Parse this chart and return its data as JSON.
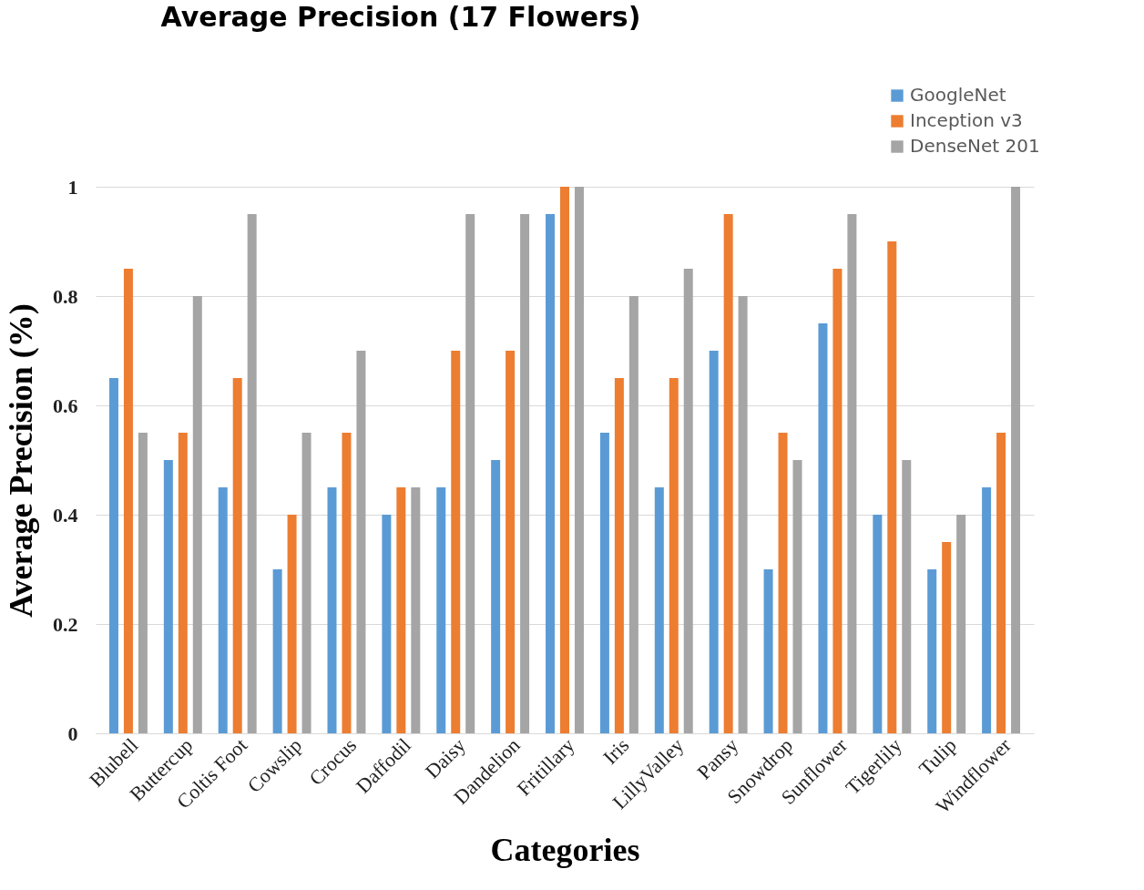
{
  "chart_data": {
    "type": "bar",
    "title": "Average Precision (17 Flowers)",
    "xlabel": "Categories",
    "ylabel": "Average Precision (%)",
    "categories": [
      "Blubell",
      "Buttercup",
      "Coltis Foot",
      "Cowslip",
      "Crocus",
      "Daffodil",
      "Daisy",
      "Dandelion",
      "Fritillary",
      "Iris",
      "LillyValley",
      "Pansy",
      "Snowdrop",
      "Sunflower",
      "Tigerlily",
      "Tulip",
      "Windflower"
    ],
    "series": [
      {
        "name": "GoogleNet",
        "color": "#5b9bd5",
        "values": [
          0.65,
          0.5,
          0.45,
          0.3,
          0.45,
          0.4,
          0.45,
          0.5,
          0.95,
          0.55,
          0.45,
          0.7,
          0.3,
          0.75,
          0.4,
          0.3,
          0.45
        ]
      },
      {
        "name": "Inception v3",
        "color": "#ed7d31",
        "values": [
          0.85,
          0.55,
          0.65,
          0.4,
          0.55,
          0.45,
          0.7,
          0.7,
          1,
          0.65,
          0.65,
          0.95,
          0.55,
          0.85,
          0.9,
          0.35,
          0.55
        ]
      },
      {
        "name": "DenseNet 201",
        "color": "#a5a5a5",
        "values": [
          0.55,
          0.8,
          0.95,
          0.55,
          0.7,
          0.45,
          0.95,
          0.95,
          1,
          0.8,
          0.85,
          0.8,
          0.5,
          0.95,
          0.5,
          0.4,
          1
        ]
      }
    ],
    "ylim": [
      0,
      1
    ],
    "yticks": [
      0,
      0.2,
      0.4,
      0.6,
      0.8,
      1
    ],
    "grid": "y",
    "legend": "top right"
  }
}
